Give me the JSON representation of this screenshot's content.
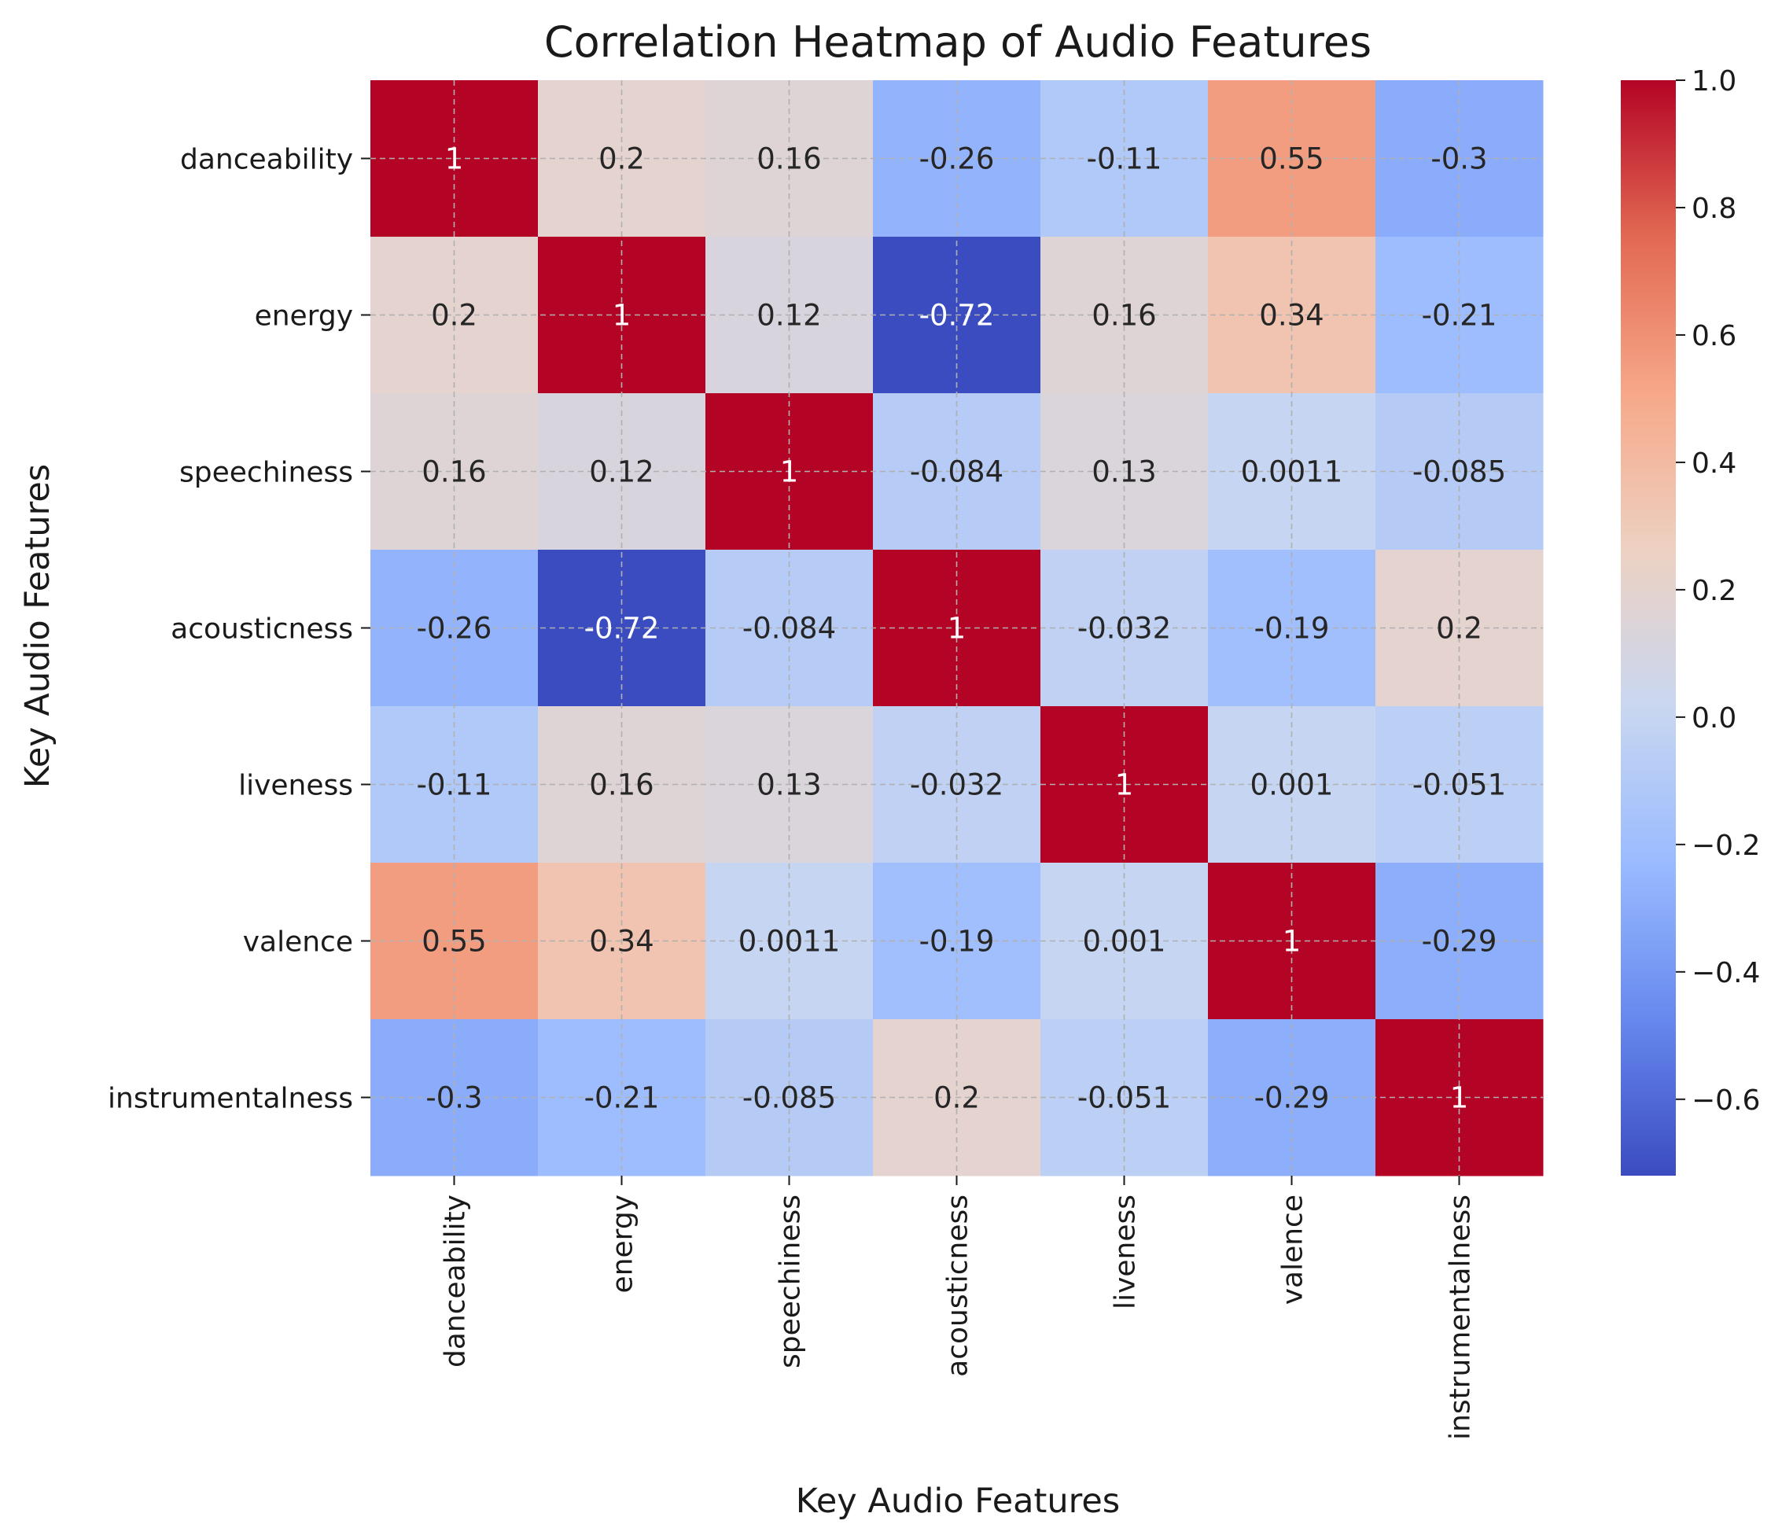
{
  "chart_data": {
    "type": "heatmap",
    "title": "Correlation Heatmap of Audio Features",
    "xlabel": "Key Audio Features",
    "ylabel": "Key Audio Features",
    "x_categories": [
      "danceability",
      "energy",
      "speechiness",
      "acousticness",
      "liveness",
      "valence",
      "instrumentalness"
    ],
    "y_categories": [
      "danceability",
      "energy",
      "speechiness",
      "acousticness",
      "liveness",
      "valence",
      "instrumentalness"
    ],
    "values": [
      [
        1,
        0.2,
        0.16,
        -0.26,
        -0.11,
        0.55,
        -0.3
      ],
      [
        0.2,
        1,
        0.12,
        -0.72,
        0.16,
        0.34,
        -0.21
      ],
      [
        0.16,
        0.12,
        1,
        -0.084,
        0.13,
        0.0011,
        -0.085
      ],
      [
        -0.26,
        -0.72,
        -0.084,
        1,
        -0.032,
        -0.19,
        0.2
      ],
      [
        -0.11,
        0.16,
        0.13,
        -0.032,
        1,
        0.001,
        -0.051
      ],
      [
        0.55,
        0.34,
        0.0011,
        -0.19,
        0.001,
        1,
        -0.29
      ],
      [
        -0.3,
        -0.21,
        -0.085,
        0.2,
        -0.051,
        -0.29,
        1
      ]
    ],
    "value_labels": [
      [
        "1",
        "0.2",
        "0.16",
        "-0.26",
        "-0.11",
        "0.55",
        "-0.3"
      ],
      [
        "0.2",
        "1",
        "0.12",
        "-0.72",
        "0.16",
        "0.34",
        "-0.21"
      ],
      [
        "0.16",
        "0.12",
        "1",
        "-0.084",
        "0.13",
        "0.0011",
        "-0.085"
      ],
      [
        "-0.26",
        "-0.72",
        "-0.084",
        "1",
        "-0.032",
        "-0.19",
        "0.2"
      ],
      [
        "-0.11",
        "0.16",
        "0.13",
        "-0.032",
        "1",
        "0.001",
        "-0.051"
      ],
      [
        "0.55",
        "0.34",
        "0.0011",
        "-0.19",
        "0.001",
        "1",
        "-0.29"
      ],
      [
        "-0.3",
        "-0.21",
        "-0.085",
        "0.2",
        "-0.051",
        "-0.29",
        "1"
      ]
    ],
    "colormap": "coolwarm",
    "colormap_stops": [
      "#3b4cc0",
      "#6788ee",
      "#9abbff",
      "#c9d7f0",
      "#edd1c2",
      "#f7a889",
      "#e26952",
      "#b40426"
    ],
    "vmin": -0.72,
    "vmax": 1.0,
    "colorbar_ticks": [
      1.0,
      0.8,
      0.6,
      0.4,
      0.2,
      0.0,
      -0.2,
      -0.4,
      -0.6
    ],
    "colorbar_tick_labels": [
      "1.0",
      "0.8",
      "0.6",
      "0.4",
      "0.2",
      "0.0",
      "−0.2",
      "−0.4",
      "−0.6"
    ],
    "grid": true,
    "legend": "colorbar-right"
  }
}
